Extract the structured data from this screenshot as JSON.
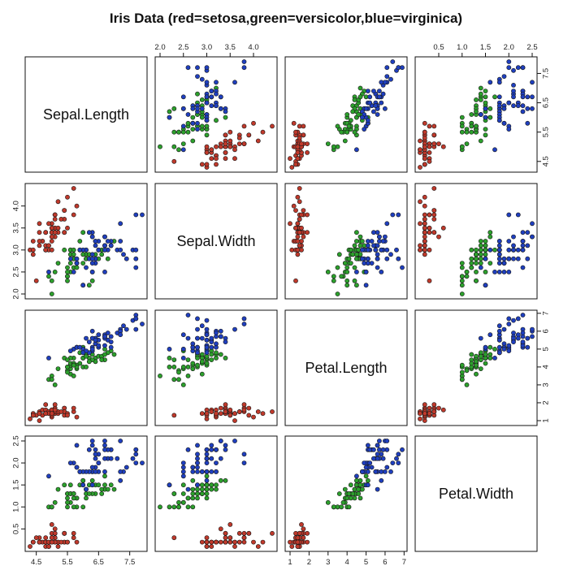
{
  "chart_data": {
    "type": "scatter",
    "title": "Iris Data (red=setosa,green=versicolor,blue=virginica)",
    "variables": [
      "Sepal.Length",
      "Sepal.Width",
      "Petal.Length",
      "Petal.Width"
    ],
    "ranges": [
      [
        4.3,
        7.9
      ],
      [
        2.0,
        4.4
      ],
      [
        1.0,
        6.9
      ],
      [
        0.1,
        2.5
      ]
    ],
    "ticks": [
      [
        4.5,
        5.5,
        6.5,
        7.5
      ],
      [
        2.0,
        2.5,
        3.0,
        3.5,
        4.0
      ],
      [
        1,
        2,
        3,
        4,
        5,
        6,
        7
      ],
      [
        0.5,
        1.0,
        1.5,
        2.0,
        2.5
      ]
    ],
    "tick_labels": [
      [
        "4.5",
        "5.5",
        "6.5",
        "7.5"
      ],
      [
        "2.0",
        "2.5",
        "3.0",
        "3.5",
        "4.0"
      ],
      [
        "1",
        "2",
        "3",
        "4",
        "5",
        "6",
        "7"
      ],
      [
        "0.5",
        "1.0",
        "1.5",
        "2.0",
        "2.5"
      ]
    ],
    "colors": {
      "setosa": "#c0392b",
      "versicolor": "#2ca02c",
      "virginica": "#1f3fbf"
    },
    "series": [
      {
        "species": "setosa",
        "points": [
          [
            5.1,
            3.5,
            1.4,
            0.2
          ],
          [
            4.9,
            3.0,
            1.4,
            0.2
          ],
          [
            4.7,
            3.2,
            1.3,
            0.2
          ],
          [
            4.6,
            3.1,
            1.5,
            0.2
          ],
          [
            5.0,
            3.6,
            1.4,
            0.2
          ],
          [
            5.4,
            3.9,
            1.7,
            0.4
          ],
          [
            4.6,
            3.4,
            1.4,
            0.3
          ],
          [
            5.0,
            3.4,
            1.5,
            0.2
          ],
          [
            4.4,
            2.9,
            1.4,
            0.2
          ],
          [
            4.9,
            3.1,
            1.5,
            0.1
          ],
          [
            5.4,
            3.7,
            1.5,
            0.2
          ],
          [
            4.8,
            3.4,
            1.6,
            0.2
          ],
          [
            4.8,
            3.0,
            1.4,
            0.1
          ],
          [
            4.3,
            3.0,
            1.1,
            0.1
          ],
          [
            5.8,
            4.0,
            1.2,
            0.2
          ],
          [
            5.7,
            4.4,
            1.5,
            0.4
          ],
          [
            5.4,
            3.9,
            1.3,
            0.4
          ],
          [
            5.1,
            3.5,
            1.4,
            0.3
          ],
          [
            5.7,
            3.8,
            1.7,
            0.3
          ],
          [
            5.1,
            3.8,
            1.5,
            0.3
          ],
          [
            5.4,
            3.4,
            1.7,
            0.2
          ],
          [
            5.1,
            3.7,
            1.5,
            0.4
          ],
          [
            4.6,
            3.6,
            1.0,
            0.2
          ],
          [
            5.1,
            3.3,
            1.7,
            0.5
          ],
          [
            4.8,
            3.4,
            1.9,
            0.2
          ],
          [
            5.0,
            3.0,
            1.6,
            0.2
          ],
          [
            5.0,
            3.4,
            1.6,
            0.4
          ],
          [
            5.2,
            3.5,
            1.5,
            0.2
          ],
          [
            5.2,
            3.4,
            1.4,
            0.2
          ],
          [
            4.7,
            3.2,
            1.6,
            0.2
          ],
          [
            4.8,
            3.1,
            1.6,
            0.2
          ],
          [
            5.4,
            3.4,
            1.5,
            0.4
          ],
          [
            5.2,
            4.1,
            1.5,
            0.1
          ],
          [
            5.5,
            4.2,
            1.4,
            0.2
          ],
          [
            4.9,
            3.1,
            1.5,
            0.2
          ],
          [
            5.0,
            3.2,
            1.2,
            0.2
          ],
          [
            5.5,
            3.5,
            1.3,
            0.2
          ],
          [
            4.9,
            3.6,
            1.4,
            0.1
          ],
          [
            4.4,
            3.0,
            1.3,
            0.2
          ],
          [
            5.1,
            3.4,
            1.5,
            0.2
          ],
          [
            5.0,
            3.5,
            1.3,
            0.3
          ],
          [
            4.5,
            2.3,
            1.3,
            0.3
          ],
          [
            4.4,
            3.2,
            1.3,
            0.2
          ],
          [
            5.0,
            3.5,
            1.6,
            0.6
          ],
          [
            5.1,
            3.8,
            1.9,
            0.4
          ],
          [
            4.8,
            3.0,
            1.4,
            0.3
          ],
          [
            5.1,
            3.8,
            1.6,
            0.2
          ],
          [
            4.6,
            3.2,
            1.4,
            0.2
          ],
          [
            5.3,
            3.7,
            1.5,
            0.2
          ],
          [
            5.0,
            3.3,
            1.4,
            0.2
          ]
        ]
      },
      {
        "species": "versicolor",
        "points": [
          [
            7.0,
            3.2,
            4.7,
            1.4
          ],
          [
            6.4,
            3.2,
            4.5,
            1.5
          ],
          [
            6.9,
            3.1,
            4.9,
            1.5
          ],
          [
            5.5,
            2.3,
            4.0,
            1.3
          ],
          [
            6.5,
            2.8,
            4.6,
            1.5
          ],
          [
            5.7,
            2.8,
            4.5,
            1.3
          ],
          [
            6.3,
            3.3,
            4.7,
            1.6
          ],
          [
            4.9,
            2.4,
            3.3,
            1.0
          ],
          [
            6.6,
            2.9,
            4.6,
            1.3
          ],
          [
            5.2,
            2.7,
            3.9,
            1.4
          ],
          [
            5.0,
            2.0,
            3.5,
            1.0
          ],
          [
            5.9,
            3.0,
            4.2,
            1.5
          ],
          [
            6.0,
            2.2,
            4.0,
            1.0
          ],
          [
            6.1,
            2.9,
            4.7,
            1.4
          ],
          [
            5.6,
            2.9,
            3.6,
            1.3
          ],
          [
            6.7,
            3.1,
            4.4,
            1.4
          ],
          [
            5.6,
            3.0,
            4.5,
            1.5
          ],
          [
            5.8,
            2.7,
            4.1,
            1.0
          ],
          [
            6.2,
            2.2,
            4.5,
            1.5
          ],
          [
            5.6,
            2.5,
            3.9,
            1.1
          ],
          [
            5.9,
            3.2,
            4.8,
            1.8
          ],
          [
            6.1,
            2.8,
            4.0,
            1.3
          ],
          [
            6.3,
            2.5,
            4.9,
            1.5
          ],
          [
            6.1,
            2.8,
            4.7,
            1.2
          ],
          [
            6.4,
            2.9,
            4.3,
            1.3
          ],
          [
            6.6,
            3.0,
            4.4,
            1.4
          ],
          [
            6.8,
            2.8,
            4.8,
            1.4
          ],
          [
            6.7,
            3.0,
            5.0,
            1.7
          ],
          [
            6.0,
            2.9,
            4.5,
            1.5
          ],
          [
            5.7,
            2.6,
            3.5,
            1.0
          ],
          [
            5.5,
            2.4,
            3.8,
            1.1
          ],
          [
            5.5,
            2.4,
            3.7,
            1.0
          ],
          [
            5.8,
            2.7,
            3.9,
            1.2
          ],
          [
            6.0,
            2.7,
            5.1,
            1.6
          ],
          [
            5.4,
            3.0,
            4.5,
            1.5
          ],
          [
            6.0,
            3.4,
            4.5,
            1.6
          ],
          [
            6.7,
            3.1,
            4.7,
            1.5
          ],
          [
            6.3,
            2.3,
            4.4,
            1.3
          ],
          [
            5.6,
            3.0,
            4.1,
            1.3
          ],
          [
            5.5,
            2.5,
            4.0,
            1.3
          ],
          [
            5.5,
            2.6,
            4.4,
            1.2
          ],
          [
            6.1,
            3.0,
            4.6,
            1.4
          ],
          [
            5.8,
            2.6,
            4.0,
            1.2
          ],
          [
            5.0,
            2.3,
            3.3,
            1.0
          ],
          [
            5.6,
            2.7,
            4.2,
            1.3
          ],
          [
            5.7,
            3.0,
            4.2,
            1.2
          ],
          [
            5.7,
            2.9,
            4.2,
            1.3
          ],
          [
            6.2,
            2.9,
            4.3,
            1.3
          ],
          [
            5.1,
            2.5,
            3.0,
            1.1
          ],
          [
            5.7,
            2.8,
            4.1,
            1.3
          ]
        ]
      },
      {
        "species": "virginica",
        "points": [
          [
            6.3,
            3.3,
            6.0,
            2.5
          ],
          [
            5.8,
            2.7,
            5.1,
            1.9
          ],
          [
            7.1,
            3.0,
            5.9,
            2.1
          ],
          [
            6.3,
            2.9,
            5.6,
            1.8
          ],
          [
            6.5,
            3.0,
            5.8,
            2.2
          ],
          [
            7.6,
            3.0,
            6.6,
            2.1
          ],
          [
            4.9,
            2.5,
            4.5,
            1.7
          ],
          [
            7.3,
            2.9,
            6.3,
            1.8
          ],
          [
            6.7,
            2.5,
            5.8,
            1.8
          ],
          [
            7.2,
            3.6,
            6.1,
            2.5
          ],
          [
            6.5,
            3.2,
            5.1,
            2.0
          ],
          [
            6.4,
            2.7,
            5.3,
            1.9
          ],
          [
            6.8,
            3.0,
            5.5,
            2.1
          ],
          [
            5.7,
            2.5,
            5.0,
            2.0
          ],
          [
            5.8,
            2.8,
            5.1,
            2.4
          ],
          [
            6.4,
            3.2,
            5.3,
            2.3
          ],
          [
            6.5,
            3.0,
            5.5,
            1.8
          ],
          [
            7.7,
            3.8,
            6.7,
            2.2
          ],
          [
            7.7,
            2.6,
            6.9,
            2.3
          ],
          [
            6.0,
            2.2,
            5.0,
            1.5
          ],
          [
            6.9,
            3.2,
            5.7,
            2.3
          ],
          [
            5.6,
            2.8,
            4.9,
            2.0
          ],
          [
            7.7,
            2.8,
            6.7,
            2.0
          ],
          [
            6.3,
            2.7,
            4.9,
            1.8
          ],
          [
            6.7,
            3.3,
            5.7,
            2.1
          ],
          [
            7.2,
            3.2,
            6.0,
            1.8
          ],
          [
            6.2,
            2.8,
            4.8,
            1.8
          ],
          [
            6.1,
            3.0,
            4.9,
            1.8
          ],
          [
            6.4,
            2.8,
            5.6,
            2.1
          ],
          [
            7.2,
            3.0,
            5.8,
            1.6
          ],
          [
            7.4,
            2.8,
            6.1,
            1.9
          ],
          [
            7.9,
            3.8,
            6.4,
            2.0
          ],
          [
            6.4,
            2.8,
            5.6,
            2.2
          ],
          [
            6.3,
            2.8,
            5.1,
            1.5
          ],
          [
            6.1,
            2.6,
            5.6,
            1.4
          ],
          [
            7.7,
            3.0,
            6.1,
            2.3
          ],
          [
            6.3,
            3.4,
            5.6,
            2.4
          ],
          [
            6.4,
            3.1,
            5.5,
            1.8
          ],
          [
            6.0,
            3.0,
            4.8,
            1.8
          ],
          [
            6.9,
            3.1,
            5.4,
            2.1
          ],
          [
            6.7,
            3.1,
            5.6,
            2.4
          ],
          [
            6.9,
            3.1,
            5.1,
            2.3
          ],
          [
            5.8,
            2.7,
            5.1,
            1.9
          ],
          [
            6.8,
            3.2,
            5.9,
            2.3
          ],
          [
            6.7,
            3.3,
            5.7,
            2.5
          ],
          [
            6.7,
            3.0,
            5.2,
            2.3
          ],
          [
            6.3,
            2.5,
            5.0,
            1.9
          ],
          [
            6.5,
            3.0,
            5.2,
            2.0
          ],
          [
            6.2,
            3.4,
            5.4,
            2.3
          ],
          [
            5.9,
            3.0,
            5.1,
            1.8
          ]
        ]
      }
    ]
  }
}
